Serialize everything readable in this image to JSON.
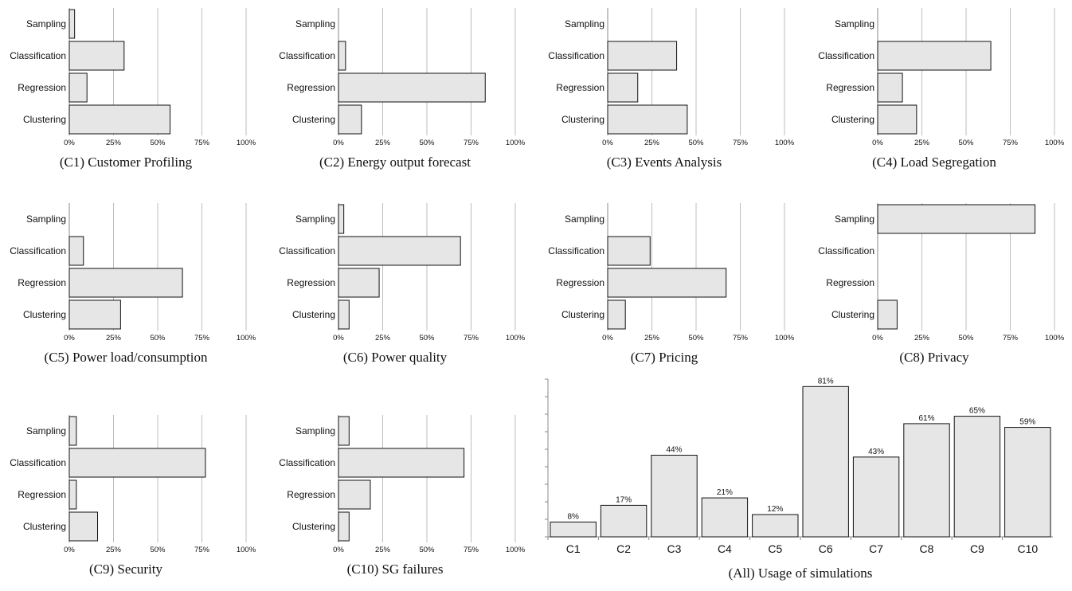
{
  "chart_data": [
    {
      "id": "c1",
      "type": "bar",
      "orientation": "horizontal",
      "caption": "(C1) Customer Profiling",
      "categories": [
        "Sampling",
        "Classification",
        "Regression",
        "Clustering"
      ],
      "values": [
        3,
        31,
        10,
        57
      ],
      "xlim": [
        0,
        100
      ],
      "xticks": [
        "0%",
        "25%",
        "50%",
        "75%",
        "100%"
      ],
      "grid": true
    },
    {
      "id": "c2",
      "type": "bar",
      "orientation": "horizontal",
      "caption": "(C2) Energy output forecast",
      "categories": [
        "Sampling",
        "Classification",
        "Regression",
        "Clustering"
      ],
      "values": [
        0,
        4,
        83,
        13
      ],
      "xlim": [
        0,
        100
      ],
      "xticks": [
        "0%",
        "25%",
        "50%",
        "75%",
        "100%"
      ],
      "grid": true
    },
    {
      "id": "c3",
      "type": "bar",
      "orientation": "horizontal",
      "caption": "(C3) Events Analysis",
      "categories": [
        "Sampling",
        "Classification",
        "Regression",
        "Clustering"
      ],
      "values": [
        0,
        39,
        17,
        45
      ],
      "xlim": [
        0,
        100
      ],
      "xticks": [
        "0%",
        "25%",
        "50%",
        "75%",
        "100%"
      ],
      "grid": true
    },
    {
      "id": "c4",
      "type": "bar",
      "orientation": "horizontal",
      "caption": "(C4) Load Segregation",
      "categories": [
        "Sampling",
        "Classification",
        "Regression",
        "Clustering"
      ],
      "values": [
        0,
        64,
        14,
        22
      ],
      "xlim": [
        0,
        100
      ],
      "xticks": [
        "0%",
        "25%",
        "50%",
        "75%",
        "100%"
      ],
      "grid": true
    },
    {
      "id": "c5",
      "type": "bar",
      "orientation": "horizontal",
      "caption": "(C5) Power load/consumption",
      "categories": [
        "Sampling",
        "Classification",
        "Regression",
        "Clustering"
      ],
      "values": [
        0,
        8,
        64,
        29
      ],
      "xlim": [
        0,
        100
      ],
      "xticks": [
        "0%",
        "25%",
        "50%",
        "75%",
        "100%"
      ],
      "grid": true
    },
    {
      "id": "c6",
      "type": "bar",
      "orientation": "horizontal",
      "caption": "(C6) Power quality",
      "categories": [
        "Sampling",
        "Classification",
        "Regression",
        "Clustering"
      ],
      "values": [
        3,
        69,
        23,
        6
      ],
      "xlim": [
        0,
        100
      ],
      "xticks": [
        "0%",
        "25%",
        "50%",
        "75%",
        "100%"
      ],
      "grid": true
    },
    {
      "id": "c7",
      "type": "bar",
      "orientation": "horizontal",
      "caption": "(C7) Pricing",
      "categories": [
        "Sampling",
        "Classification",
        "Regression",
        "Clustering"
      ],
      "values": [
        0,
        24,
        67,
        10
      ],
      "xlim": [
        0,
        100
      ],
      "xticks": [
        "0%",
        "25%",
        "50%",
        "75%",
        "100%"
      ],
      "grid": true
    },
    {
      "id": "c8",
      "type": "bar",
      "orientation": "horizontal",
      "caption": "(C8) Privacy",
      "categories": [
        "Sampling",
        "Classification",
        "Regression",
        "Clustering"
      ],
      "values": [
        89,
        0,
        0,
        11
      ],
      "xlim": [
        0,
        100
      ],
      "xticks": [
        "0%",
        "25%",
        "50%",
        "75%",
        "100%"
      ],
      "grid": true
    },
    {
      "id": "c9",
      "type": "bar",
      "orientation": "horizontal",
      "caption": "(C9) Security",
      "categories": [
        "Sampling",
        "Classification",
        "Regression",
        "Clustering"
      ],
      "values": [
        4,
        77,
        4,
        16
      ],
      "xlim": [
        0,
        100
      ],
      "xticks": [
        "0%",
        "25%",
        "50%",
        "75%",
        "100%"
      ],
      "grid": true
    },
    {
      "id": "c10",
      "type": "bar",
      "orientation": "horizontal",
      "caption": "(C10) SG failures",
      "categories": [
        "Sampling",
        "Classification",
        "Regression",
        "Clustering"
      ],
      "values": [
        6,
        71,
        18,
        6
      ],
      "xlim": [
        0,
        100
      ],
      "xticks": [
        "0%",
        "25%",
        "50%",
        "75%",
        "100%"
      ],
      "grid": true
    },
    {
      "id": "all",
      "type": "bar",
      "orientation": "vertical",
      "caption": "(All) Usage of simulations",
      "categories": [
        "C1",
        "C2",
        "C3",
        "C4",
        "C5",
        "C6",
        "C7",
        "C8",
        "C9",
        "C10"
      ],
      "values": [
        8,
        17,
        44,
        21,
        12,
        81,
        43,
        61,
        65,
        59
      ],
      "data_labels": [
        "8%",
        "17%",
        "44%",
        "21%",
        "12%",
        "81%",
        "43%",
        "61%",
        "65%",
        "59%"
      ],
      "ylim": [
        0,
        85
      ],
      "grid": false
    }
  ],
  "colors": {
    "bar_fill": "#e6e6e6",
    "bar_stroke": "#111111",
    "grid": "#bdbdbd",
    "axis": "#888888"
  }
}
